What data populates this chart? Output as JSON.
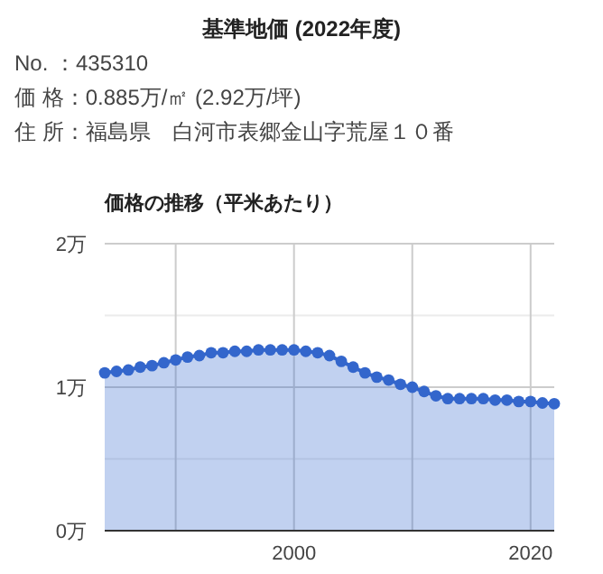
{
  "chart_data": {
    "type": "area",
    "title": "基準地価 (2022年度)",
    "subtitle": "価格の推移（平米あたり）",
    "annotations": [
      "No. ：435310",
      "価 格：0.885万/㎡ (2.92万/坪)",
      "住 所：福島県　白河市表郷金山字荒屋１０番"
    ],
    "x": [
      1984,
      1985,
      1986,
      1987,
      1988,
      1989,
      1990,
      1991,
      1992,
      1993,
      1994,
      1995,
      1996,
      1997,
      1998,
      1999,
      2000,
      2001,
      2002,
      2003,
      2004,
      2005,
      2006,
      2007,
      2008,
      2009,
      2010,
      2011,
      2012,
      2013,
      2014,
      2015,
      2016,
      2017,
      2018,
      2019,
      2020,
      2021,
      2022
    ],
    "series": [
      {
        "color": "#3366cc",
        "values": [
          1.1,
          1.11,
          1.12,
          1.14,
          1.15,
          1.17,
          1.19,
          1.21,
          1.22,
          1.24,
          1.24,
          1.25,
          1.25,
          1.26,
          1.26,
          1.26,
          1.26,
          1.25,
          1.24,
          1.22,
          1.18,
          1.14,
          1.1,
          1.07,
          1.05,
          1.02,
          1.0,
          0.97,
          0.94,
          0.92,
          0.92,
          0.92,
          0.92,
          0.91,
          0.91,
          0.9,
          0.9,
          0.89,
          0.885
        ]
      }
    ],
    "xlim": [
      1984,
      2022
    ],
    "ylim": [
      0,
      2
    ],
    "xticks": [
      {
        "value": 1990,
        "label": null
      },
      2000,
      {
        "value": 2010,
        "label": null
      },
      2020
    ],
    "yticks": [
      {
        "value": 0,
        "label": "0万"
      },
      {
        "value": 0.5,
        "label": null
      },
      {
        "value": 1,
        "label": "1万"
      },
      {
        "value": 1.5,
        "label": null
      },
      {
        "value": 2,
        "label": "2万"
      }
    ],
    "grid": true,
    "marker": "circle",
    "line_style": "solid"
  }
}
